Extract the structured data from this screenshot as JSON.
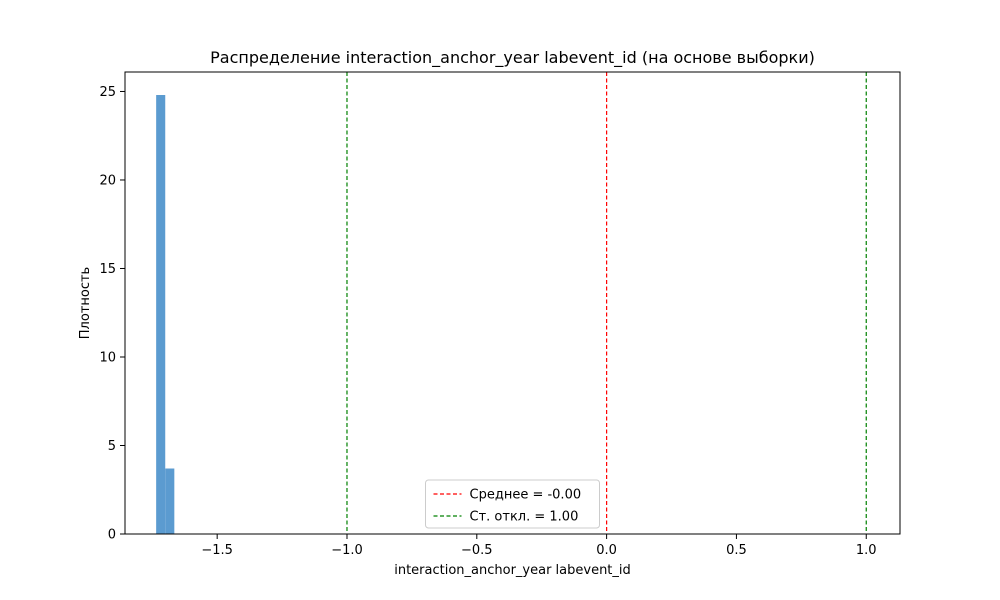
{
  "chart_data": {
    "type": "bar",
    "title": "Распределение interaction_anchor_year labevent_id (на основе выборки)",
    "xlabel": "interaction_anchor_year labevent_id",
    "ylabel": "Плотность",
    "xlim": [
      -1.855,
      1.13
    ],
    "ylim": [
      0,
      26.1
    ],
    "x_ticks": [
      -1.5,
      -1.0,
      -0.5,
      0.0,
      0.5,
      1.0
    ],
    "x_tick_labels": [
      "−1.5",
      "−1.0",
      "−0.5",
      "0.0",
      "0.5",
      "1.0"
    ],
    "y_ticks": [
      0,
      5,
      10,
      15,
      20,
      25
    ],
    "y_tick_labels": [
      "0",
      "5",
      "10",
      "15",
      "20",
      "25"
    ],
    "bins": [
      {
        "x0": -1.735,
        "x1": -1.7,
        "density": 24.8
      },
      {
        "x0": -1.7,
        "x1": -1.665,
        "density": 3.7
      }
    ],
    "bar_color": "#5b9bd0",
    "vlines": [
      {
        "x": 0.0,
        "color": "#ff0000",
        "style": "dashed"
      },
      {
        "x": -1.0,
        "color": "#008000",
        "style": "dashed"
      },
      {
        "x": 1.0,
        "color": "#008000",
        "style": "dashed"
      }
    ],
    "legend": {
      "placement": "bottom-center",
      "entries": [
        {
          "label": "Среднее = -0.00",
          "color": "#ff0000",
          "style": "dashed"
        },
        {
          "label": "Ст. откл. = 1.00",
          "color": "#008000",
          "style": "dashed"
        }
      ]
    },
    "grid": false
  }
}
